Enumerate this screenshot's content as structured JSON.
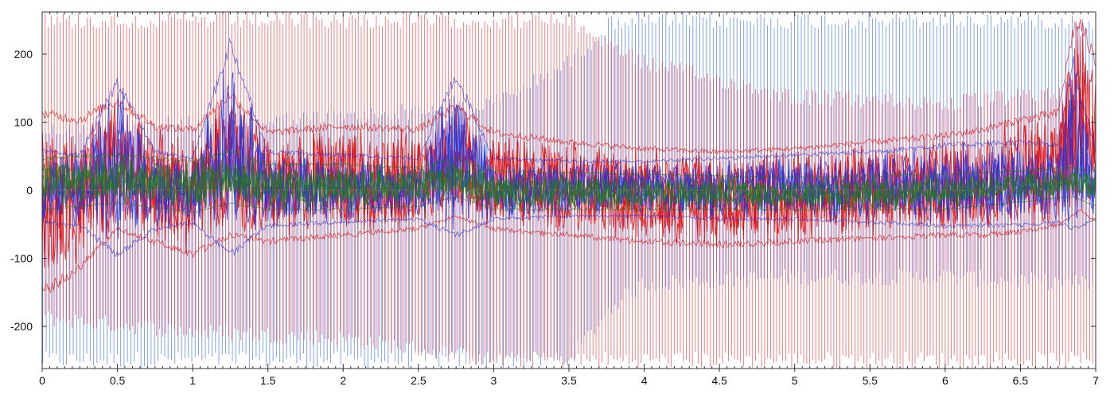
{
  "chart_data": {
    "type": "line",
    "title": "",
    "xlabel": "",
    "ylabel": "",
    "xlim": [
      0,
      7
    ],
    "ylim": [
      -262,
      262
    ],
    "grid": false,
    "legend": "none",
    "x_ticks": [
      0,
      0.5,
      1,
      1.5,
      2,
      2.5,
      3,
      3.5,
      4,
      4.5,
      5,
      5.5,
      6,
      6.5,
      7
    ],
    "x_tick_labels": [
      "0",
      "0.5",
      "1",
      "1.5",
      "2",
      "2.5",
      "3",
      "3.5",
      "4",
      "4.5",
      "5",
      "5.5",
      "6",
      "6.5",
      "7"
    ],
    "y_ticks": [
      200,
      100,
      0,
      -100,
      -200
    ],
    "y_tick_labels": [
      "200",
      "100",
      "0",
      "-100",
      "-200"
    ],
    "spikes": {
      "red_period": 0.02,
      "blue_period": 0.0225,
      "red_extent": {
        "x": [
          0,
          1,
          2,
          3,
          3.5,
          4,
          5,
          6,
          7
        ],
        "top": [
          262,
          262,
          262,
          262,
          262,
          200,
          150,
          140,
          160
        ],
        "bottom": [
          -200,
          -220,
          -230,
          -262,
          -262,
          -262,
          -262,
          -262,
          -262
        ]
      },
      "blue_extent": {
        "x": [
          0,
          1,
          2,
          3,
          3.5,
          3.8,
          4,
          5,
          6,
          7
        ],
        "top": [
          100,
          110,
          120,
          140,
          200,
          262,
          262,
          262,
          262,
          262
        ],
        "bottom": [
          -262,
          -262,
          -262,
          -262,
          -262,
          -180,
          -150,
          -140,
          -140,
          -150
        ]
      }
    },
    "series": [
      {
        "color": "#e00000",
        "x": [
          0,
          0.25,
          0.5,
          0.75,
          1,
          1.25,
          1.5,
          2,
          2.5,
          2.75,
          3,
          3.5,
          4,
          4.5,
          5,
          5.5,
          6,
          6.25,
          6.5,
          6.75,
          6.85,
          6.9,
          7
        ],
        "upper": [
          120,
          110,
          140,
          100,
          95,
          150,
          90,
          100,
          95,
          130,
          90,
          75,
          65,
          60,
          65,
          75,
          85,
          95,
          110,
          120,
          250,
          260,
          200
        ],
        "lower": [
          -160,
          -120,
          -60,
          -80,
          -100,
          -70,
          -80,
          -70,
          -60,
          -40,
          -60,
          -70,
          -80,
          -85,
          -80,
          -75,
          -70,
          -70,
          -65,
          -55,
          -40,
          -30,
          -50
        ]
      },
      {
        "color": "#2233dd",
        "x": [
          0,
          0.25,
          0.5,
          0.75,
          1,
          1.25,
          1.5,
          2,
          2.5,
          2.75,
          3,
          3.5,
          4,
          4.5,
          5,
          5.5,
          6,
          6.5,
          6.75,
          6.85,
          6.9,
          7
        ],
        "upper": [
          60,
          55,
          170,
          60,
          50,
          230,
          60,
          55,
          50,
          180,
          50,
          45,
          45,
          50,
          55,
          60,
          70,
          75,
          70,
          200,
          150,
          60
        ],
        "lower": [
          -50,
          -55,
          -100,
          -60,
          -50,
          -100,
          -55,
          -50,
          -45,
          -70,
          -45,
          -40,
          -40,
          -45,
          -45,
          -50,
          -55,
          -55,
          -50,
          -60,
          -55,
          -45
        ]
      },
      {
        "color": "#1f7a1f",
        "x": [
          0,
          0.5,
          1,
          1.25,
          1.5,
          2,
          2.5,
          2.75,
          3,
          4,
          5,
          6,
          6.85,
          7
        ],
        "upper": [
          50,
          55,
          45,
          60,
          40,
          40,
          35,
          50,
          30,
          25,
          20,
          25,
          35,
          30
        ],
        "lower": [
          -30,
          -20,
          -35,
          -20,
          -30,
          -30,
          -25,
          -10,
          -30,
          -30,
          -30,
          -30,
          -10,
          -25
        ]
      }
    ]
  }
}
